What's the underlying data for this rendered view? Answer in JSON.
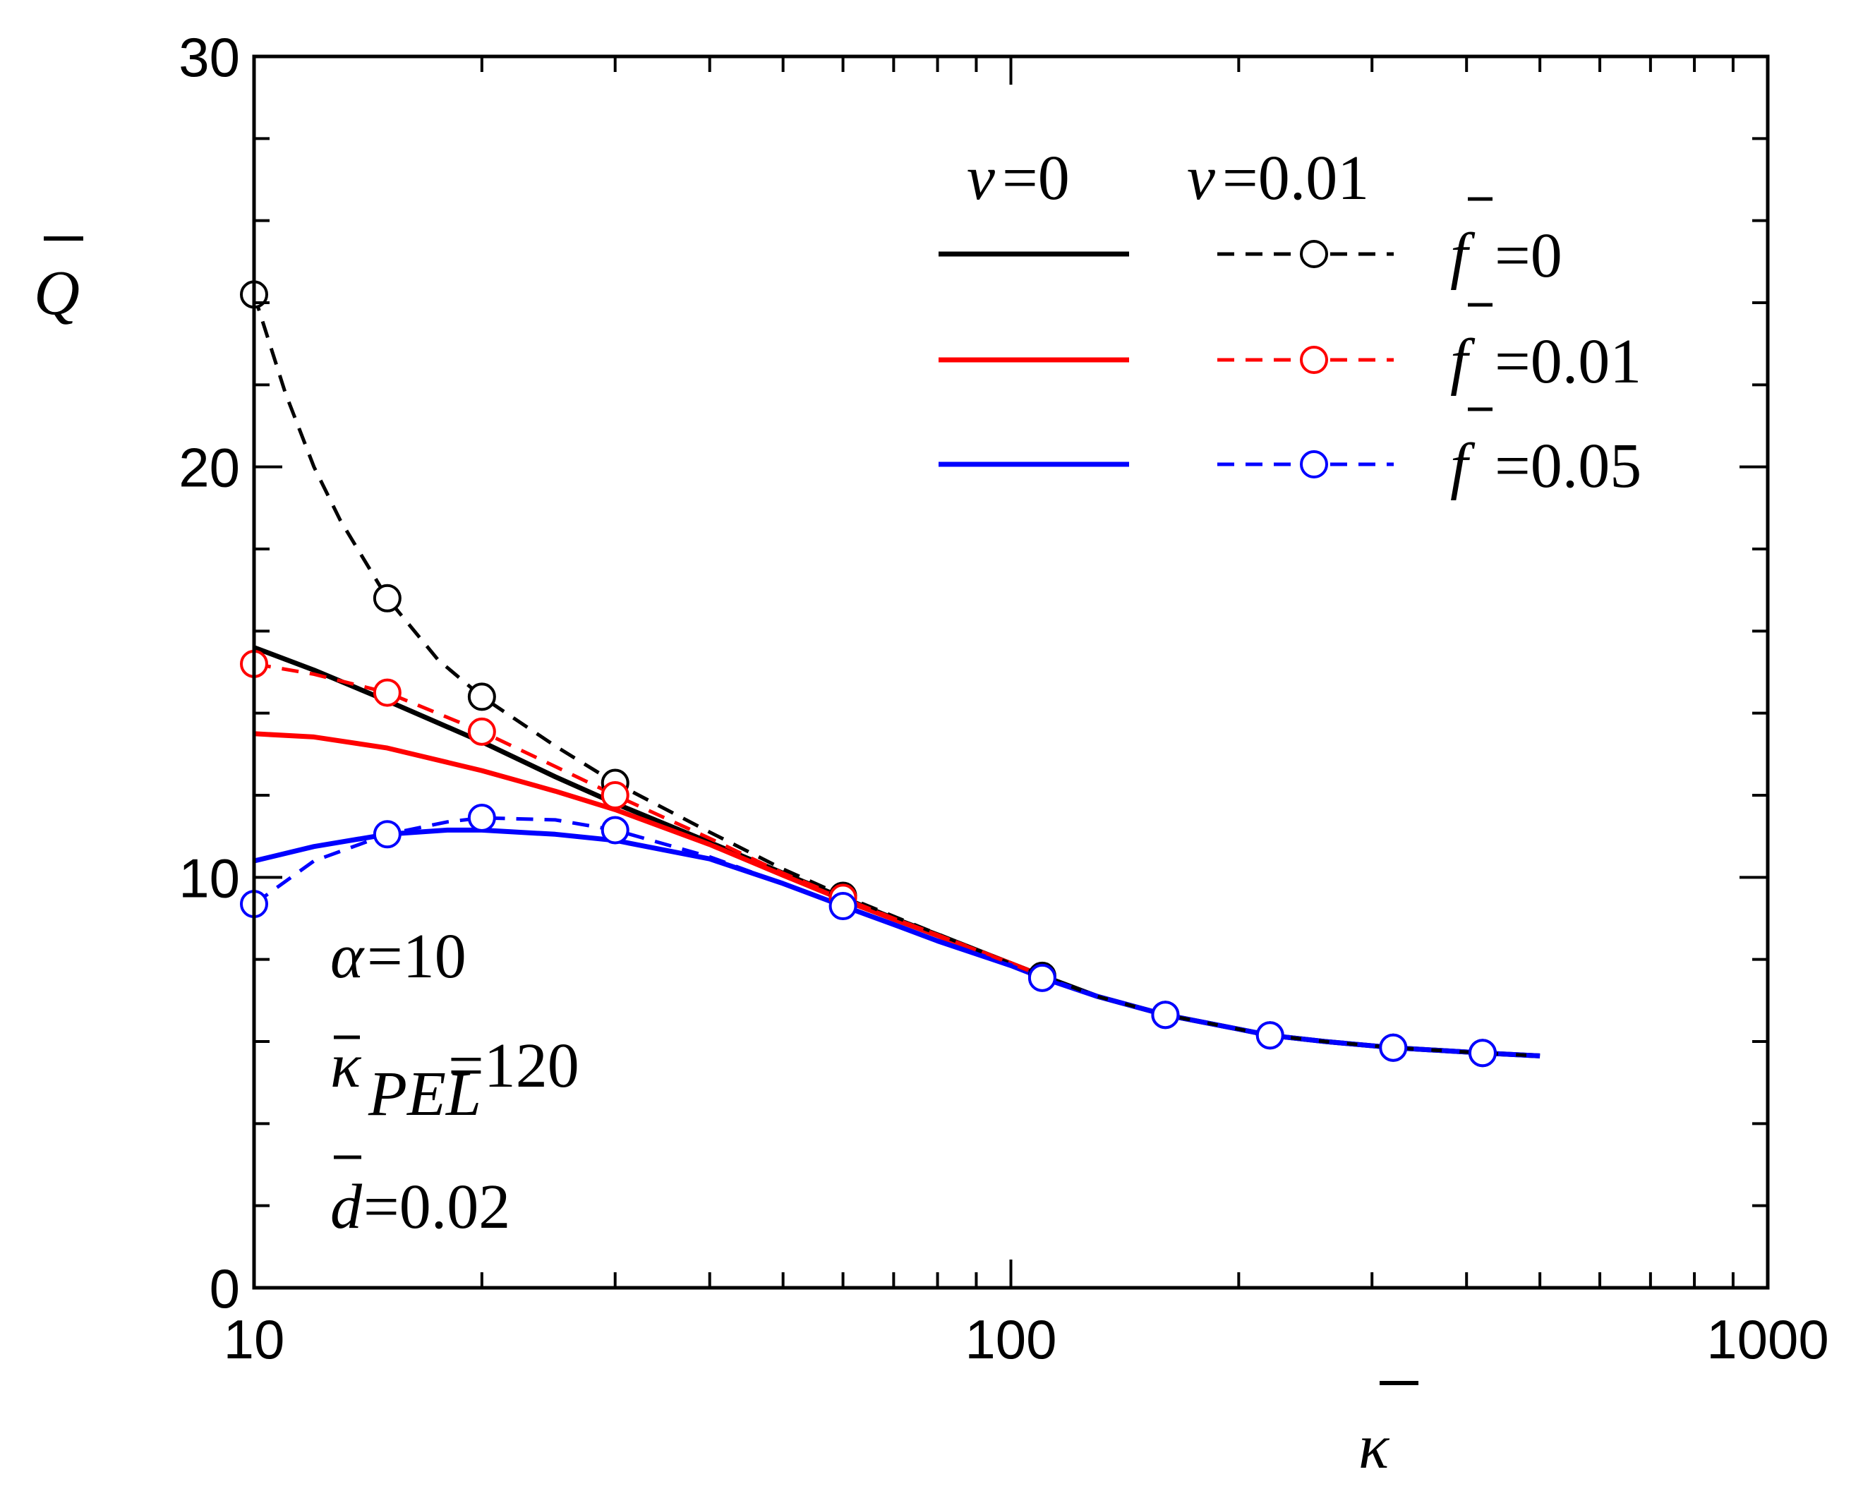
{
  "chart_data": {
    "type": "line",
    "title": "",
    "xlabel": "κ",
    "ylabel": "Q",
    "xscale": "log",
    "xlim": [
      10,
      1000
    ],
    "ylim": [
      0,
      30
    ],
    "xticks": [
      10,
      100,
      1000
    ],
    "xtick_labels": [
      "10",
      "100",
      "1000"
    ],
    "yticks": [
      0,
      10,
      20,
      30
    ],
    "ytick_labels": [
      "0",
      "10",
      "20",
      "30"
    ],
    "legend": {
      "placement": "top-right",
      "header_solid": {
        "symbol": "ν",
        "value": "=0"
      },
      "header_dashed": {
        "symbol": "ν",
        "value": "=0.01"
      },
      "rows": [
        {
          "symbol": "f",
          "value": "=0",
          "color": "#000000"
        },
        {
          "symbol": "f",
          "value": "=0.01",
          "color": "#ff0000"
        },
        {
          "symbol": "f",
          "value": "=0.05",
          "color": "#0000ff"
        }
      ]
    },
    "annotations": [
      {
        "symbol": "α",
        "value": "=10"
      },
      {
        "symbol": "κ",
        "subscript": "PEL",
        "value": "=120"
      },
      {
        "symbol": "d",
        "value": "=0.02"
      }
    ],
    "series": [
      {
        "name": "ν=0, f=0",
        "color": "#000000",
        "style": "solid",
        "markers": false,
        "x": [
          10,
          12,
          15,
          20,
          25,
          30,
          40,
          50,
          60,
          70,
          80,
          100,
          110,
          130,
          160,
          200,
          220,
          260,
          320,
          420,
          500
        ],
        "y": [
          15.6,
          15.05,
          14.3,
          13.3,
          12.45,
          11.8,
          10.85,
          10.1,
          9.5,
          9.0,
          8.6,
          7.9,
          7.6,
          7.1,
          6.65,
          6.3,
          6.15,
          6.0,
          5.85,
          5.72,
          5.65
        ]
      },
      {
        "name": "ν=0, f=0.01",
        "color": "#ff0000",
        "style": "solid",
        "markers": false,
        "x": [
          10,
          12,
          15,
          20,
          25,
          30,
          40,
          50,
          60,
          70,
          80,
          100,
          110
        ],
        "y": [
          13.5,
          13.42,
          13.15,
          12.6,
          12.1,
          11.65,
          10.8,
          10.05,
          9.45,
          8.98,
          8.58,
          7.9,
          7.6
        ]
      },
      {
        "name": "ν=0, f=0.05",
        "color": "#0000ff",
        "style": "solid",
        "markers": false,
        "x": [
          10,
          12,
          15,
          18,
          20,
          25,
          30,
          40,
          50,
          60,
          70,
          80,
          100,
          110,
          130,
          160,
          200,
          220,
          260,
          320,
          420,
          500
        ],
        "y": [
          10.4,
          10.75,
          11.05,
          11.15,
          11.15,
          11.05,
          10.9,
          10.45,
          9.85,
          9.3,
          8.85,
          8.45,
          7.85,
          7.55,
          7.1,
          6.65,
          6.3,
          6.15,
          6.0,
          5.85,
          5.72,
          5.65
        ]
      },
      {
        "name": "ν=0.01, f=0",
        "color": "#000000",
        "style": "dashed",
        "markers": true,
        "x": [
          10,
          11,
          12,
          13,
          15,
          17.5,
          20,
          25,
          30,
          40,
          50,
          60,
          70,
          80,
          100,
          110,
          130,
          160,
          200,
          220,
          260,
          320,
          420,
          500
        ],
        "y": [
          24.2,
          21.8,
          20.0,
          18.7,
          16.8,
          15.3,
          14.4,
          13.2,
          12.3,
          11.1,
          10.2,
          9.55,
          9.05,
          8.62,
          7.9,
          7.6,
          7.1,
          6.65,
          6.3,
          6.15,
          6.0,
          5.85,
          5.72,
          5.65
        ],
        "marker_x": [
          10,
          15,
          20,
          30,
          60,
          110,
          160,
          220,
          320,
          420
        ],
        "marker_y": [
          24.2,
          16.8,
          14.4,
          12.3,
          9.55,
          7.6,
          6.65,
          6.15,
          5.85,
          5.72
        ]
      },
      {
        "name": "ν=0.01, f=0.01",
        "color": "#ff0000",
        "style": "dashed",
        "markers": true,
        "x": [
          10,
          12,
          15,
          20,
          25,
          30,
          40,
          50,
          60,
          70,
          80,
          100,
          110
        ],
        "y": [
          15.2,
          14.95,
          14.5,
          13.55,
          12.7,
          12.0,
          10.95,
          10.1,
          9.5,
          9.0,
          8.6,
          7.9,
          7.6
        ],
        "marker_x": [
          10,
          15,
          20,
          30,
          60
        ],
        "marker_y": [
          15.2,
          14.5,
          13.55,
          12.0,
          9.5
        ]
      },
      {
        "name": "ν=0.01, f=0.05",
        "color": "#0000ff",
        "style": "dashed",
        "markers": true,
        "x": [
          10,
          12,
          15,
          18,
          20,
          25,
          30,
          40,
          50,
          60,
          70,
          80,
          100,
          110,
          130,
          160,
          200,
          220,
          260,
          320,
          420,
          500
        ],
        "y": [
          9.35,
          10.4,
          11.05,
          11.35,
          11.45,
          11.4,
          11.15,
          10.5,
          9.85,
          9.3,
          8.85,
          8.45,
          7.85,
          7.55,
          7.1,
          6.65,
          6.3,
          6.15,
          6.0,
          5.85,
          5.72,
          5.65
        ],
        "marker_x": [
          10,
          15,
          20,
          30,
          60,
          110,
          160,
          220,
          320,
          420
        ],
        "marker_y": [
          9.35,
          11.05,
          11.45,
          11.15,
          9.3,
          7.55,
          6.65,
          6.15,
          5.85,
          5.72
        ]
      }
    ]
  }
}
